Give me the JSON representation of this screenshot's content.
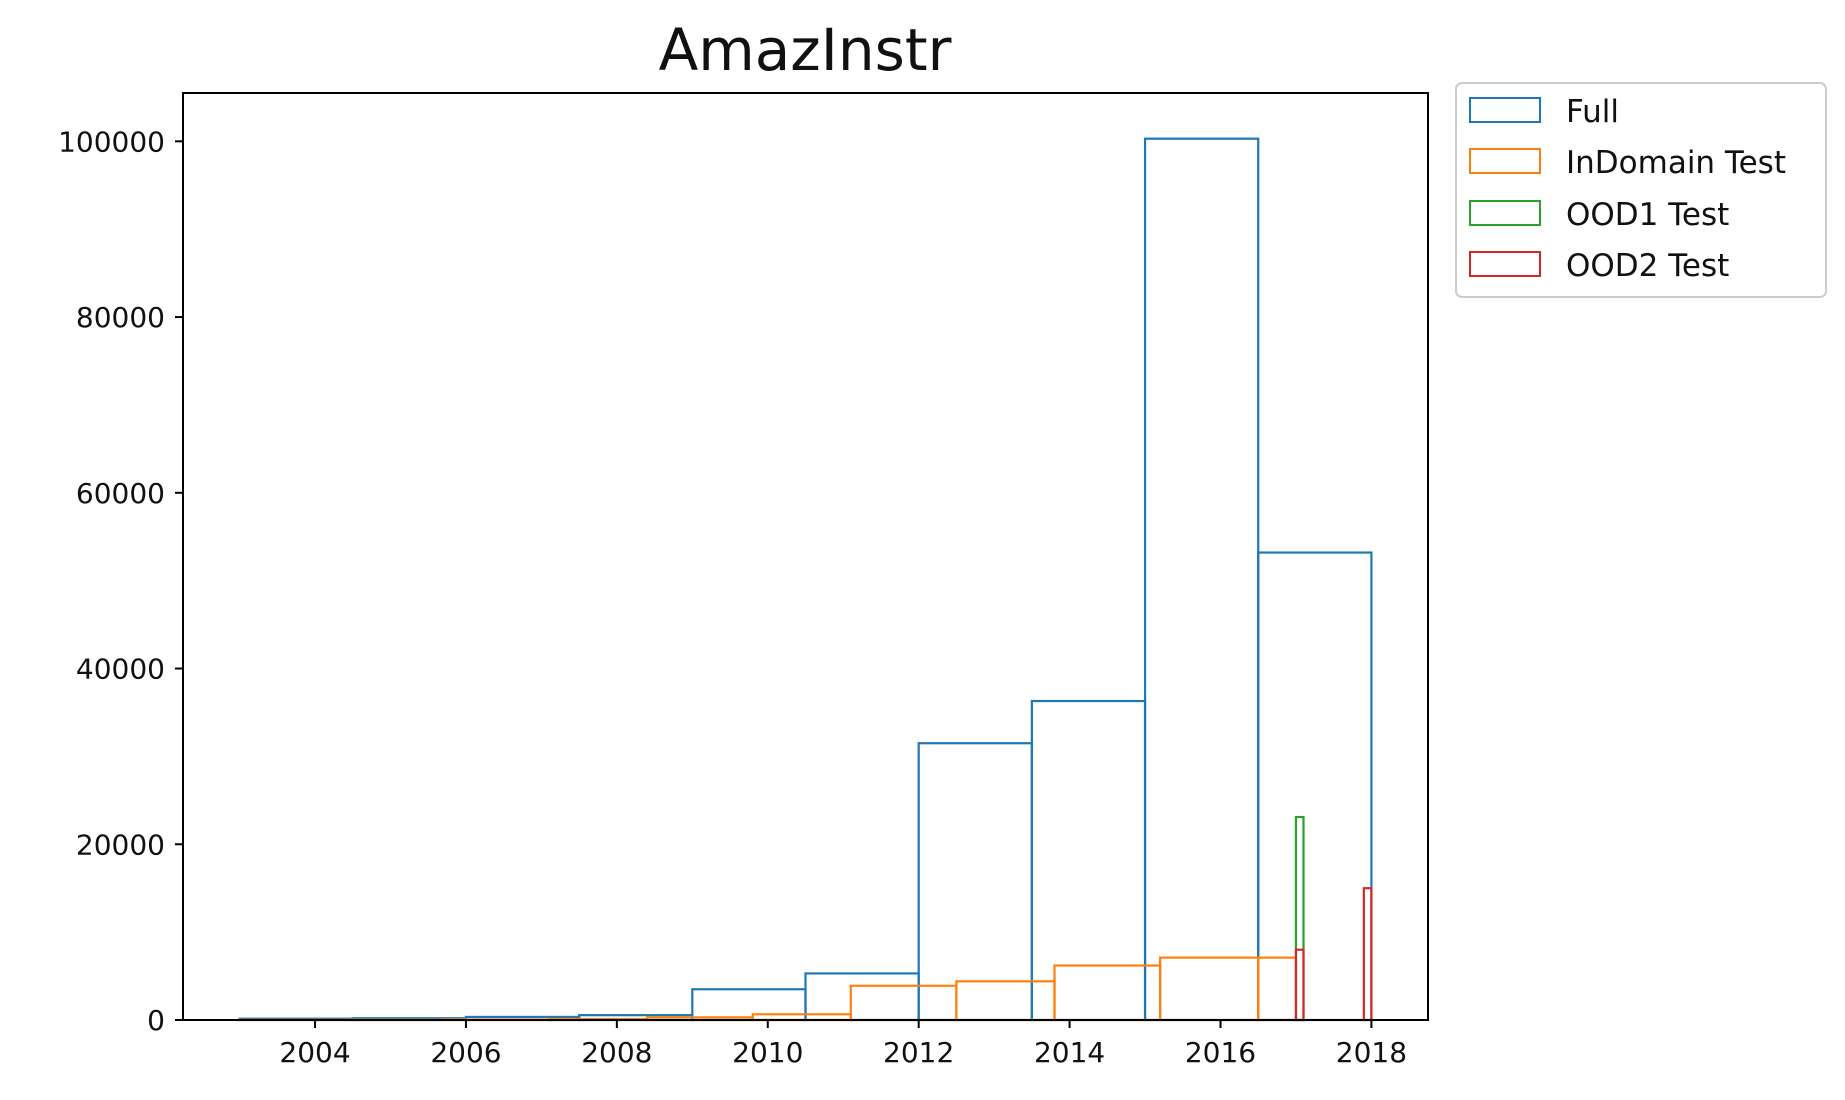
{
  "chart_data": {
    "type": "histogram",
    "title": "AmazInstr",
    "xlabel": "",
    "ylabel": "",
    "xlim": [
      2002.25,
      2018.75
    ],
    "ylim": [
      0,
      105500
    ],
    "xticks": [
      2004,
      2006,
      2008,
      2010,
      2012,
      2014,
      2016,
      2018
    ],
    "yticks": [
      0,
      20000,
      40000,
      60000,
      80000,
      100000
    ],
    "grid": false,
    "legend_position": "outside-top-right",
    "series": [
      {
        "name": "Full",
        "color": "#1f77b4",
        "edges": [
          2003.0,
          2004.5,
          2006.0,
          2007.5,
          2009.0,
          2010.5,
          2012.0,
          2013.5,
          2015.0,
          2016.5,
          2018.0
        ],
        "counts": [
          150,
          200,
          350,
          550,
          3500,
          5300,
          31500,
          36300,
          100300,
          53200
        ]
      },
      {
        "name": "InDomain Test",
        "color": "#ff7f0e",
        "edges": [
          2003.0,
          2004.4,
          2005.7,
          2007.1,
          2008.4,
          2009.8,
          2011.1,
          2012.5,
          2013.8,
          2015.2,
          2016.5,
          2017.0
        ],
        "counts": [
          20,
          30,
          60,
          120,
          300,
          650,
          3900,
          4400,
          6200,
          7100,
          7100
        ]
      },
      {
        "name": "OOD1 Test",
        "color": "#2ca02c",
        "edges": [
          2017.0,
          2017.1
        ],
        "counts": [
          23100
        ]
      },
      {
        "name": "OOD2 Test",
        "color": "#d62728",
        "edges": [
          2017.0,
          2017.1,
          2017.9,
          2018.0
        ],
        "counts": [
          8000,
          0,
          15000
        ]
      }
    ]
  }
}
